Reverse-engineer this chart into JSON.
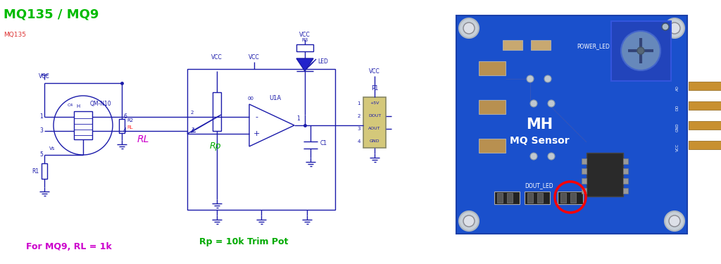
{
  "title": "MQ135 / MQ9",
  "title_color": "#00bb00",
  "title_fontsize": 13,
  "bg_color": "#ffffff",
  "subtitle": "MQ135",
  "subtitle_color": "#dd3333",
  "text_rp": "Rp = 10k Trim Pot",
  "text_rp_color": "#00aa00",
  "text_mq9": "For MQ9, RL = 1k",
  "text_mq9_color": "#cc00cc",
  "sc": "#1a1aaa",
  "label_rl_color": "#cc00cc",
  "label_rl2_color": "#ff3333",
  "label_rp_color": "#00aa00",
  "pcb_bg": "#1a4fcc",
  "pin_color": "#c8a060"
}
